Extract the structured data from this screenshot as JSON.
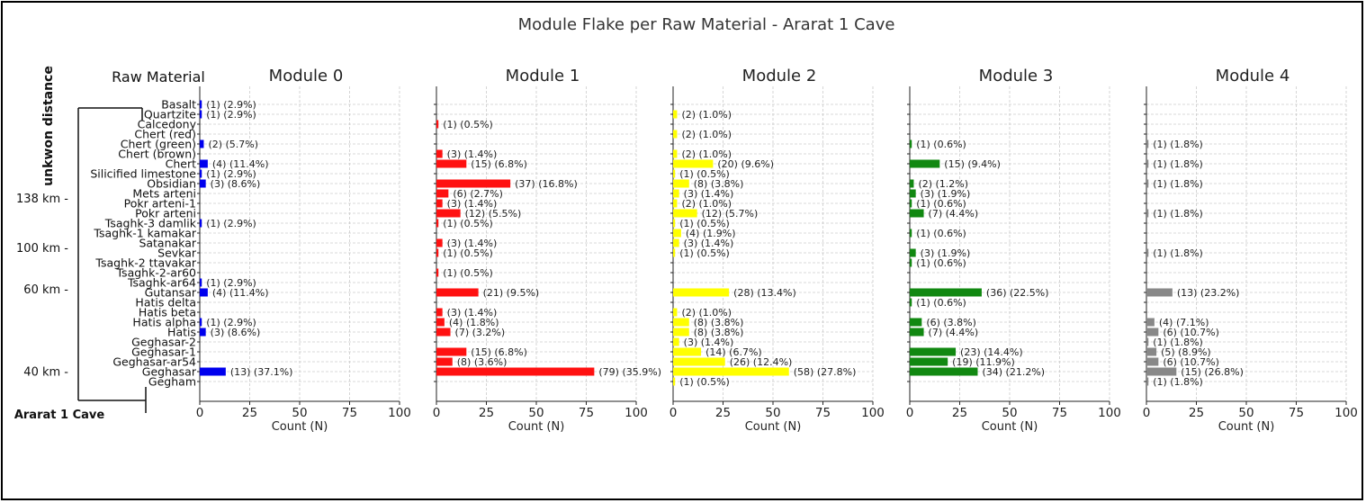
{
  "chart_data": {
    "type": "bar",
    "orientation": "horizontal",
    "title": "Module Flake per Raw Material - Ararat 1 Cave",
    "row_header": "Raw Material",
    "xlabel": "Count (N)",
    "xlim": [
      0,
      100
    ],
    "xticks": [
      0,
      25,
      50,
      75,
      100
    ],
    "grid": true,
    "categories": [
      "Basalt",
      "Quartzite",
      "Calcedony",
      "Chert (red)",
      "Chert (green)",
      "Chert (brown)",
      "Chert",
      "Silicified limestone",
      "Obsidian",
      "Mets arteni",
      "Pokr arteni-1",
      "Pokr arteni",
      "Tsaghk-3 damlik",
      "Tsaghk-1 kamakar",
      "Satanakar",
      "Sevkar",
      "Tsaghk-2 ttavakar",
      "Tsaghk-2-ar60",
      "Tsaghk-ar64",
      "Gutansar",
      "Hatis delta",
      "Hatis beta",
      "Hatis alpha",
      "Hatis",
      "Geghasar-2",
      "Geghasar-1",
      "Geghasar-ar54",
      "Geghasar",
      "Gegham"
    ],
    "series": [
      {
        "name": "Module 0",
        "color": "#0000ee",
        "values": [
          1,
          1,
          null,
          null,
          2,
          null,
          4,
          1,
          3,
          null,
          null,
          null,
          1,
          null,
          null,
          null,
          null,
          null,
          1,
          4,
          null,
          null,
          1,
          3,
          null,
          null,
          null,
          13,
          null
        ],
        "labels": [
          "(1) (2.9%)",
          "(1) (2.9%)",
          "",
          "",
          "(2) (5.7%)",
          "",
          "(4) (11.4%)",
          "(1) (2.9%)",
          "(3) (8.6%)",
          "",
          "",
          "",
          "(1) (2.9%)",
          "",
          "",
          "",
          "",
          "",
          "(1) (2.9%)",
          "(4) (11.4%)",
          "",
          "",
          "(1) (2.9%)",
          "(3) (8.6%)",
          "",
          "",
          "",
          "(13) (37.1%)",
          ""
        ]
      },
      {
        "name": "Module 1",
        "color": "#ff1111",
        "values": [
          null,
          null,
          1,
          null,
          null,
          3,
          15,
          null,
          37,
          6,
          3,
          12,
          1,
          null,
          3,
          1,
          null,
          1,
          null,
          21,
          null,
          3,
          4,
          7,
          null,
          15,
          8,
          79,
          null
        ],
        "labels": [
          "",
          "",
          "(1) (0.5%)",
          "",
          "",
          "(3) (1.4%)",
          "(15) (6.8%)",
          "",
          "(37) (16.8%)",
          "(6) (2.7%)",
          "(3) (1.4%)",
          "(12) (5.5%)",
          "(1) (0.5%)",
          "",
          "(3) (1.4%)",
          "(1) (0.5%)",
          "",
          "(1) (0.5%)",
          "",
          "(21) (9.5%)",
          "",
          "(3) (1.4%)",
          "(4) (1.8%)",
          "(7) (3.2%)",
          "",
          "(15) (6.8%)",
          "(8) (3.6%)",
          "(79) (35.9%)",
          ""
        ]
      },
      {
        "name": "Module 2",
        "color": "#ffff00",
        "values": [
          null,
          2,
          null,
          2,
          null,
          2,
          20,
          1,
          8,
          3,
          2,
          12,
          1,
          4,
          3,
          1,
          null,
          null,
          null,
          28,
          null,
          2,
          8,
          8,
          3,
          14,
          26,
          58,
          1
        ],
        "labels": [
          "",
          "(2) (1.0%)",
          "",
          "(2) (1.0%)",
          "",
          "(2) (1.0%)",
          "(20) (9.6%)",
          "(1) (0.5%)",
          "(8) (3.8%)",
          "(3) (1.4%)",
          "(2) (1.0%)",
          "(12) (5.7%)",
          "(1) (0.5%)",
          "(4) (1.9%)",
          "(3) (1.4%)",
          "(1) (0.5%)",
          "",
          "",
          "",
          "(28) (13.4%)",
          "",
          "(2) (1.0%)",
          "(8) (3.8%)",
          "(8) (3.8%)",
          "(3) (1.4%)",
          "(14) (6.7%)",
          "(26) (12.4%)",
          "(58) (27.8%)",
          "(1) (0.5%)"
        ]
      },
      {
        "name": "Module 3",
        "color": "#118811",
        "values": [
          null,
          null,
          null,
          null,
          1,
          null,
          15,
          null,
          2,
          3,
          1,
          7,
          null,
          1,
          null,
          3,
          1,
          null,
          null,
          36,
          1,
          null,
          6,
          7,
          null,
          23,
          19,
          34,
          null
        ],
        "labels": [
          "",
          "",
          "",
          "",
          "(1) (0.6%)",
          "",
          "(15) (9.4%)",
          "",
          "(2) (1.2%)",
          "(3) (1.9%)",
          "(1) (0.6%)",
          "(7) (4.4%)",
          "",
          "(1) (0.6%)",
          "",
          "(3) (1.9%)",
          "(1) (0.6%)",
          "",
          "",
          "(36) (22.5%)",
          "(1) (0.6%)",
          "",
          "(6) (3.8%)",
          "(7) (4.4%)",
          "",
          "(23) (14.4%)",
          "(19) (11.9%)",
          "(34) (21.2%)",
          ""
        ]
      },
      {
        "name": "Module 4",
        "color": "#888888",
        "values": [
          null,
          null,
          null,
          null,
          1,
          null,
          1,
          null,
          1,
          null,
          null,
          1,
          null,
          null,
          null,
          1,
          null,
          null,
          null,
          13,
          null,
          null,
          4,
          6,
          1,
          5,
          6,
          15,
          1
        ],
        "labels": [
          "",
          "",
          "",
          "",
          "(1) (1.8%)",
          "",
          "(1) (1.8%)",
          "",
          "(1) (1.8%)",
          "",
          "",
          "(1) (1.8%)",
          "",
          "",
          "",
          "(1) (1.8%)",
          "",
          "",
          "",
          "(13) (23.2%)",
          "",
          "",
          "(4) (7.1%)",
          "(6) (10.7%)",
          "(1) (1.8%)",
          "(5) (8.9%)",
          "(6) (10.7%)",
          "(15) (26.8%)",
          "(1) (1.8%)"
        ]
      }
    ],
    "dendrogram": {
      "axis_label": "unkwon distance",
      "tick_labels": [
        "138 km -",
        "100 km -",
        "60 km -",
        "40 km -"
      ],
      "tick_rows": [
        9.5,
        14.5,
        18.7,
        27
      ],
      "root_label": "Ararat 1 Cave"
    }
  }
}
